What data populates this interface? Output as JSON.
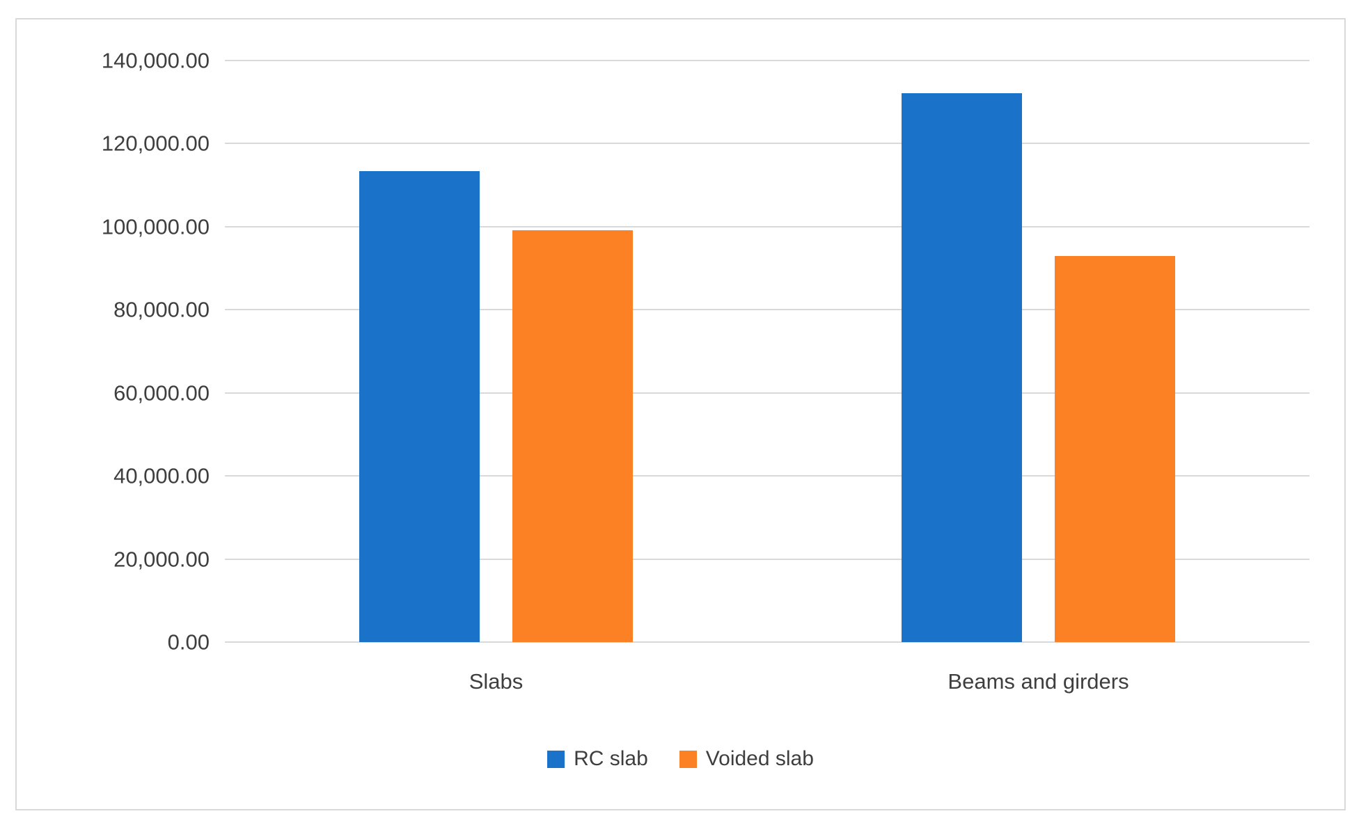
{
  "figure": {
    "background": "#ffffff",
    "frame_border_color": "#d9d9d9",
    "gridline_color": "#d9d9d9",
    "text_color": "#3e3e3e"
  },
  "chart_data": {
    "type": "bar",
    "title": "",
    "xlabel": "",
    "ylabel": "",
    "categories": [
      "Slabs",
      "Beams and girders"
    ],
    "series": [
      {
        "name": "RC slab",
        "color": "#1a73c9",
        "values": [
          113400,
          132100
        ]
      },
      {
        "name": "Voided slab",
        "color": "#fc8125",
        "values": [
          99100,
          92900
        ]
      }
    ],
    "ylim": [
      0,
      140000
    ],
    "ytick_interval": 20000,
    "yticks": [
      {
        "value": 140000,
        "label": "140,000.00"
      },
      {
        "value": 120000,
        "label": "120,000.00"
      },
      {
        "value": 100000,
        "label": "100,000.00"
      },
      {
        "value": 80000,
        "label": "80,000.00"
      },
      {
        "value": 60000,
        "label": "60,000.00"
      },
      {
        "value": 40000,
        "label": "40,000.00"
      },
      {
        "value": 20000,
        "label": "20,000.00"
      },
      {
        "value": 0,
        "label": "0.00"
      }
    ],
    "grid": true,
    "legend_position": "bottom"
  }
}
